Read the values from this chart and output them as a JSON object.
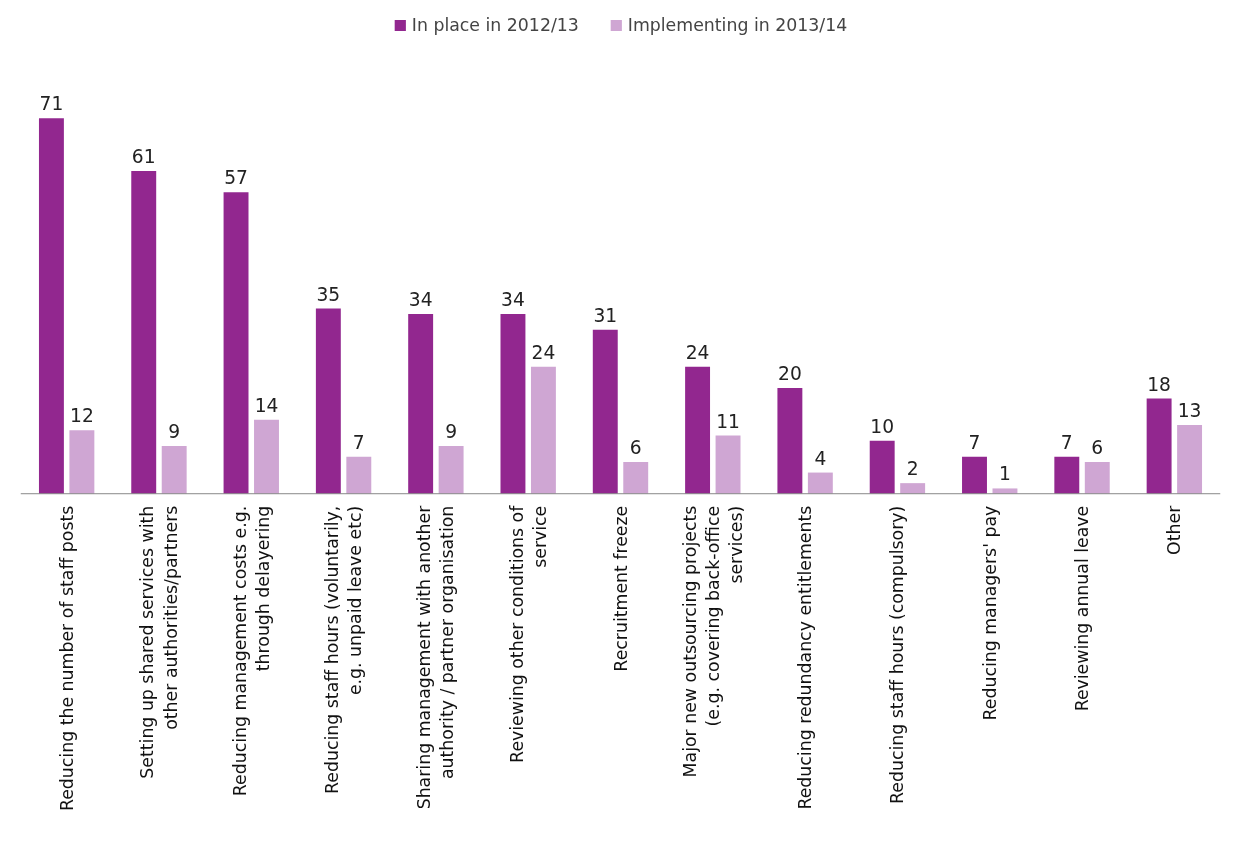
{
  "chart_data": {
    "type": "bar",
    "categories": [
      "Reducing the number of staff posts",
      "Setting up shared services with other authorities/partners",
      "Reducing management costs e.g. through delayering",
      "Reducing staff hours (voluntarily, e.g. unpaid leave etc)",
      "Sharing management with another authority / partner organisation",
      "Reviewing other conditions of service",
      "Recruitment freeze",
      "Major new outsourcing projects (e.g. covering back-office services)",
      "Reducing redundancy entitlements",
      "Reducing staff hours (compulsory)",
      "Reducing managers' pay",
      "Reviewing annual leave",
      "Other"
    ],
    "series": [
      {
        "name": "In place in 2012/13",
        "color": "#92278f",
        "values": [
          71,
          61,
          57,
          35,
          34,
          34,
          31,
          24,
          20,
          10,
          7,
          7,
          18
        ]
      },
      {
        "name": "Implementing in 2013/14",
        "color": "#cfa6d3",
        "values": [
          12,
          9,
          14,
          7,
          9,
          24,
          6,
          11,
          4,
          2,
          1,
          6,
          13
        ]
      }
    ],
    "data_labels": true,
    "legend": "top",
    "grid": false
  }
}
